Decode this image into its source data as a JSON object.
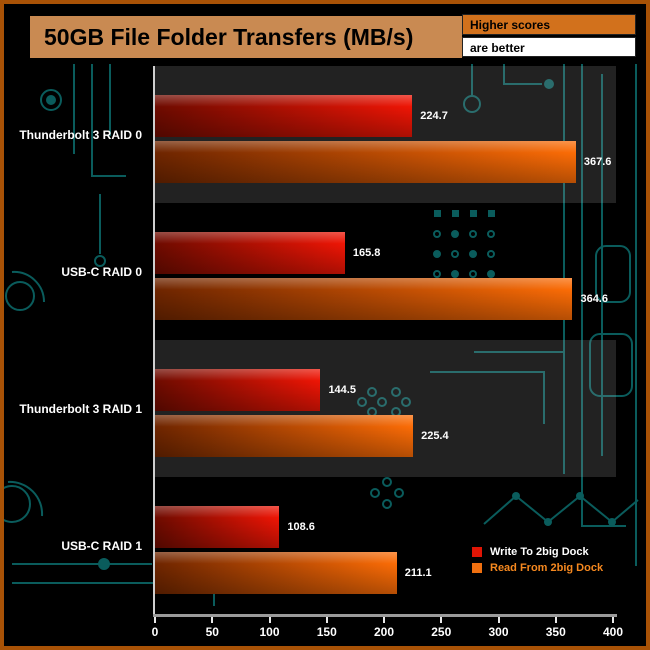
{
  "header": {
    "title": "50GB File Folder Transfers (MB/s)",
    "note_line1": "Higher scores",
    "note_line2": "are better"
  },
  "colors": {
    "frame": "#a85206",
    "title_bg": "#c98a52",
    "note_top_bg": "#d2711c",
    "note_bottom_bg": "#ffffff",
    "circuit": "#0a5c5c",
    "band": "rgba(190,190,190,0.18)",
    "axis": "#cfcfcf",
    "value_text": "#ffffff"
  },
  "chart_data": {
    "type": "bar",
    "orientation": "horizontal",
    "title": "50GB File Folder Transfers (MB/s)",
    "subtitle": "Higher scores are better",
    "categories": [
      "Thunderbolt 3 RAID 0",
      "USB-C RAID 0",
      "Thunderbolt 3 RAID 1",
      "USB-C RAID 1"
    ],
    "series": [
      {
        "key": "write",
        "name": "Write To 2big Dock",
        "values": [
          224.7,
          165.8,
          144.5,
          108.6
        ],
        "color_start": "#6e0b00",
        "color_end": "#ee1505",
        "swatch": "#e01505",
        "label_color": "#ffffff"
      },
      {
        "key": "read",
        "name": "Read From 2big Dock",
        "values": [
          367.6,
          364.6,
          225.4,
          211.1
        ],
        "color_start": "#6e2500",
        "color_end": "#fb6c06",
        "swatch": "#f07010",
        "label_color": "#f5881f"
      }
    ],
    "xlim": [
      0,
      400
    ],
    "x_ticks": [
      0,
      50,
      100,
      150,
      200,
      250,
      300,
      350,
      400
    ],
    "grid": false,
    "legend_position": "bottom-right"
  }
}
